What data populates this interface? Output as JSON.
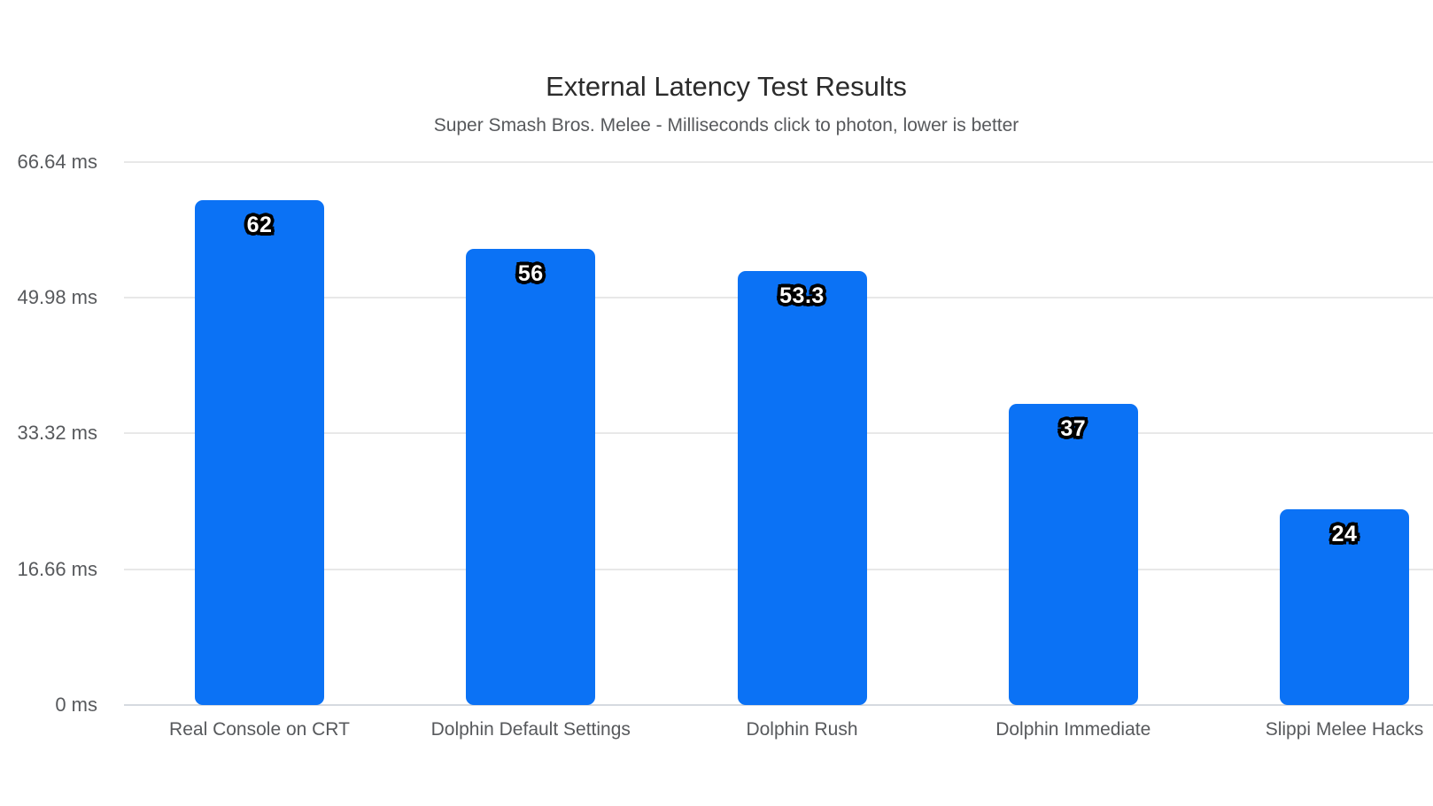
{
  "chart_data": {
    "type": "bar",
    "title": "External Latency Test Results",
    "subtitle": "Super Smash Bros. Melee - Milliseconds click to photon, lower is better",
    "categories": [
      "Real Console on CRT",
      "Dolphin Default Settings",
      "Dolphin Rush",
      "Dolphin Immediate",
      "Slippi Melee Hacks"
    ],
    "values": [
      62,
      56,
      53.3,
      37,
      24
    ],
    "value_labels": [
      "62",
      "56",
      "53.3",
      "37",
      "24"
    ],
    "unit": "ms",
    "xlabel": "",
    "ylabel": "",
    "y_ticks": [
      0,
      16.66,
      33.32,
      49.98,
      66.64
    ],
    "y_tick_labels": [
      "0 ms",
      "16.66 ms",
      "33.32 ms",
      "49.98 ms",
      "66.64 ms"
    ],
    "ylim": [
      0,
      66.64
    ],
    "grid": true,
    "legend": false,
    "colors": {
      "bar": "#0b72f5",
      "gridline": "#e8e8e8",
      "zero_line": "#d5dae0",
      "title_text": "#2b2b2b",
      "axis_text": "#57595c",
      "value_label_fill": "#ffffff",
      "value_label_outline": "#000000"
    }
  }
}
